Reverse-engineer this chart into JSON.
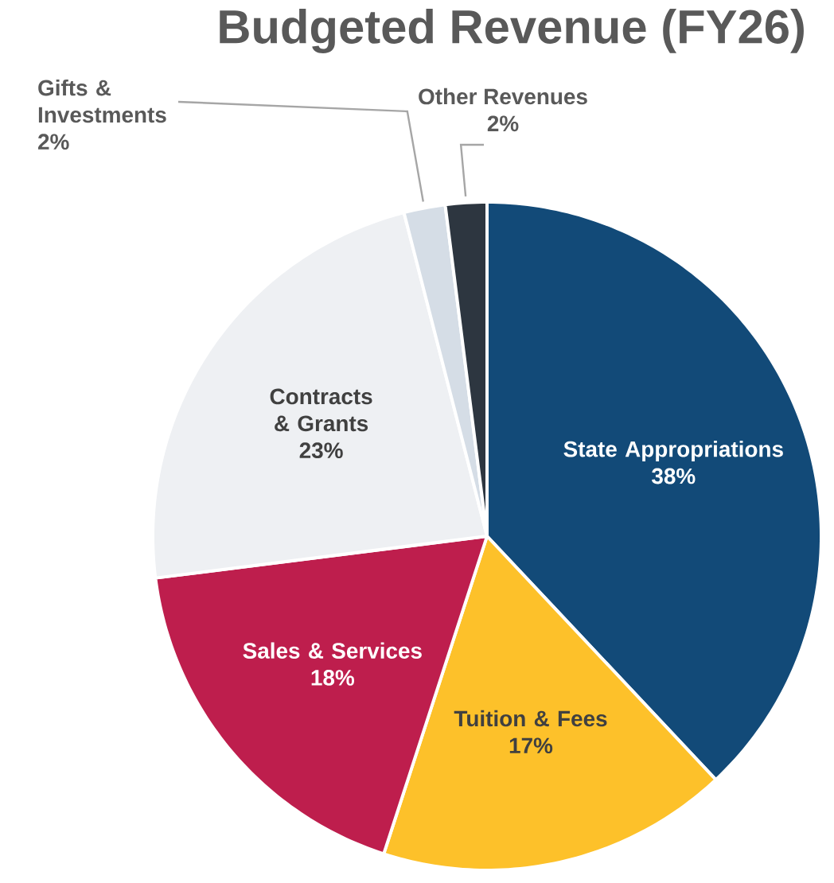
{
  "chart_data": {
    "type": "pie",
    "title": "Budgeted Revenue (FY26)",
    "categories": [
      "State Appropriations",
      "Tuition & Fees",
      "Sales & Services",
      "Contracts & Grants",
      "Gifts & Investments",
      "Other Revenues"
    ],
    "values": [
      38,
      17,
      18,
      23,
      2,
      2
    ],
    "value_labels": [
      "38%",
      "17%",
      "18%",
      "23%",
      "2%",
      "2%"
    ],
    "colors": [
      "#124a78",
      "#fdc12a",
      "#be1e4d",
      "#eef0f3",
      "#d5dde6",
      "#2d3640"
    ]
  }
}
